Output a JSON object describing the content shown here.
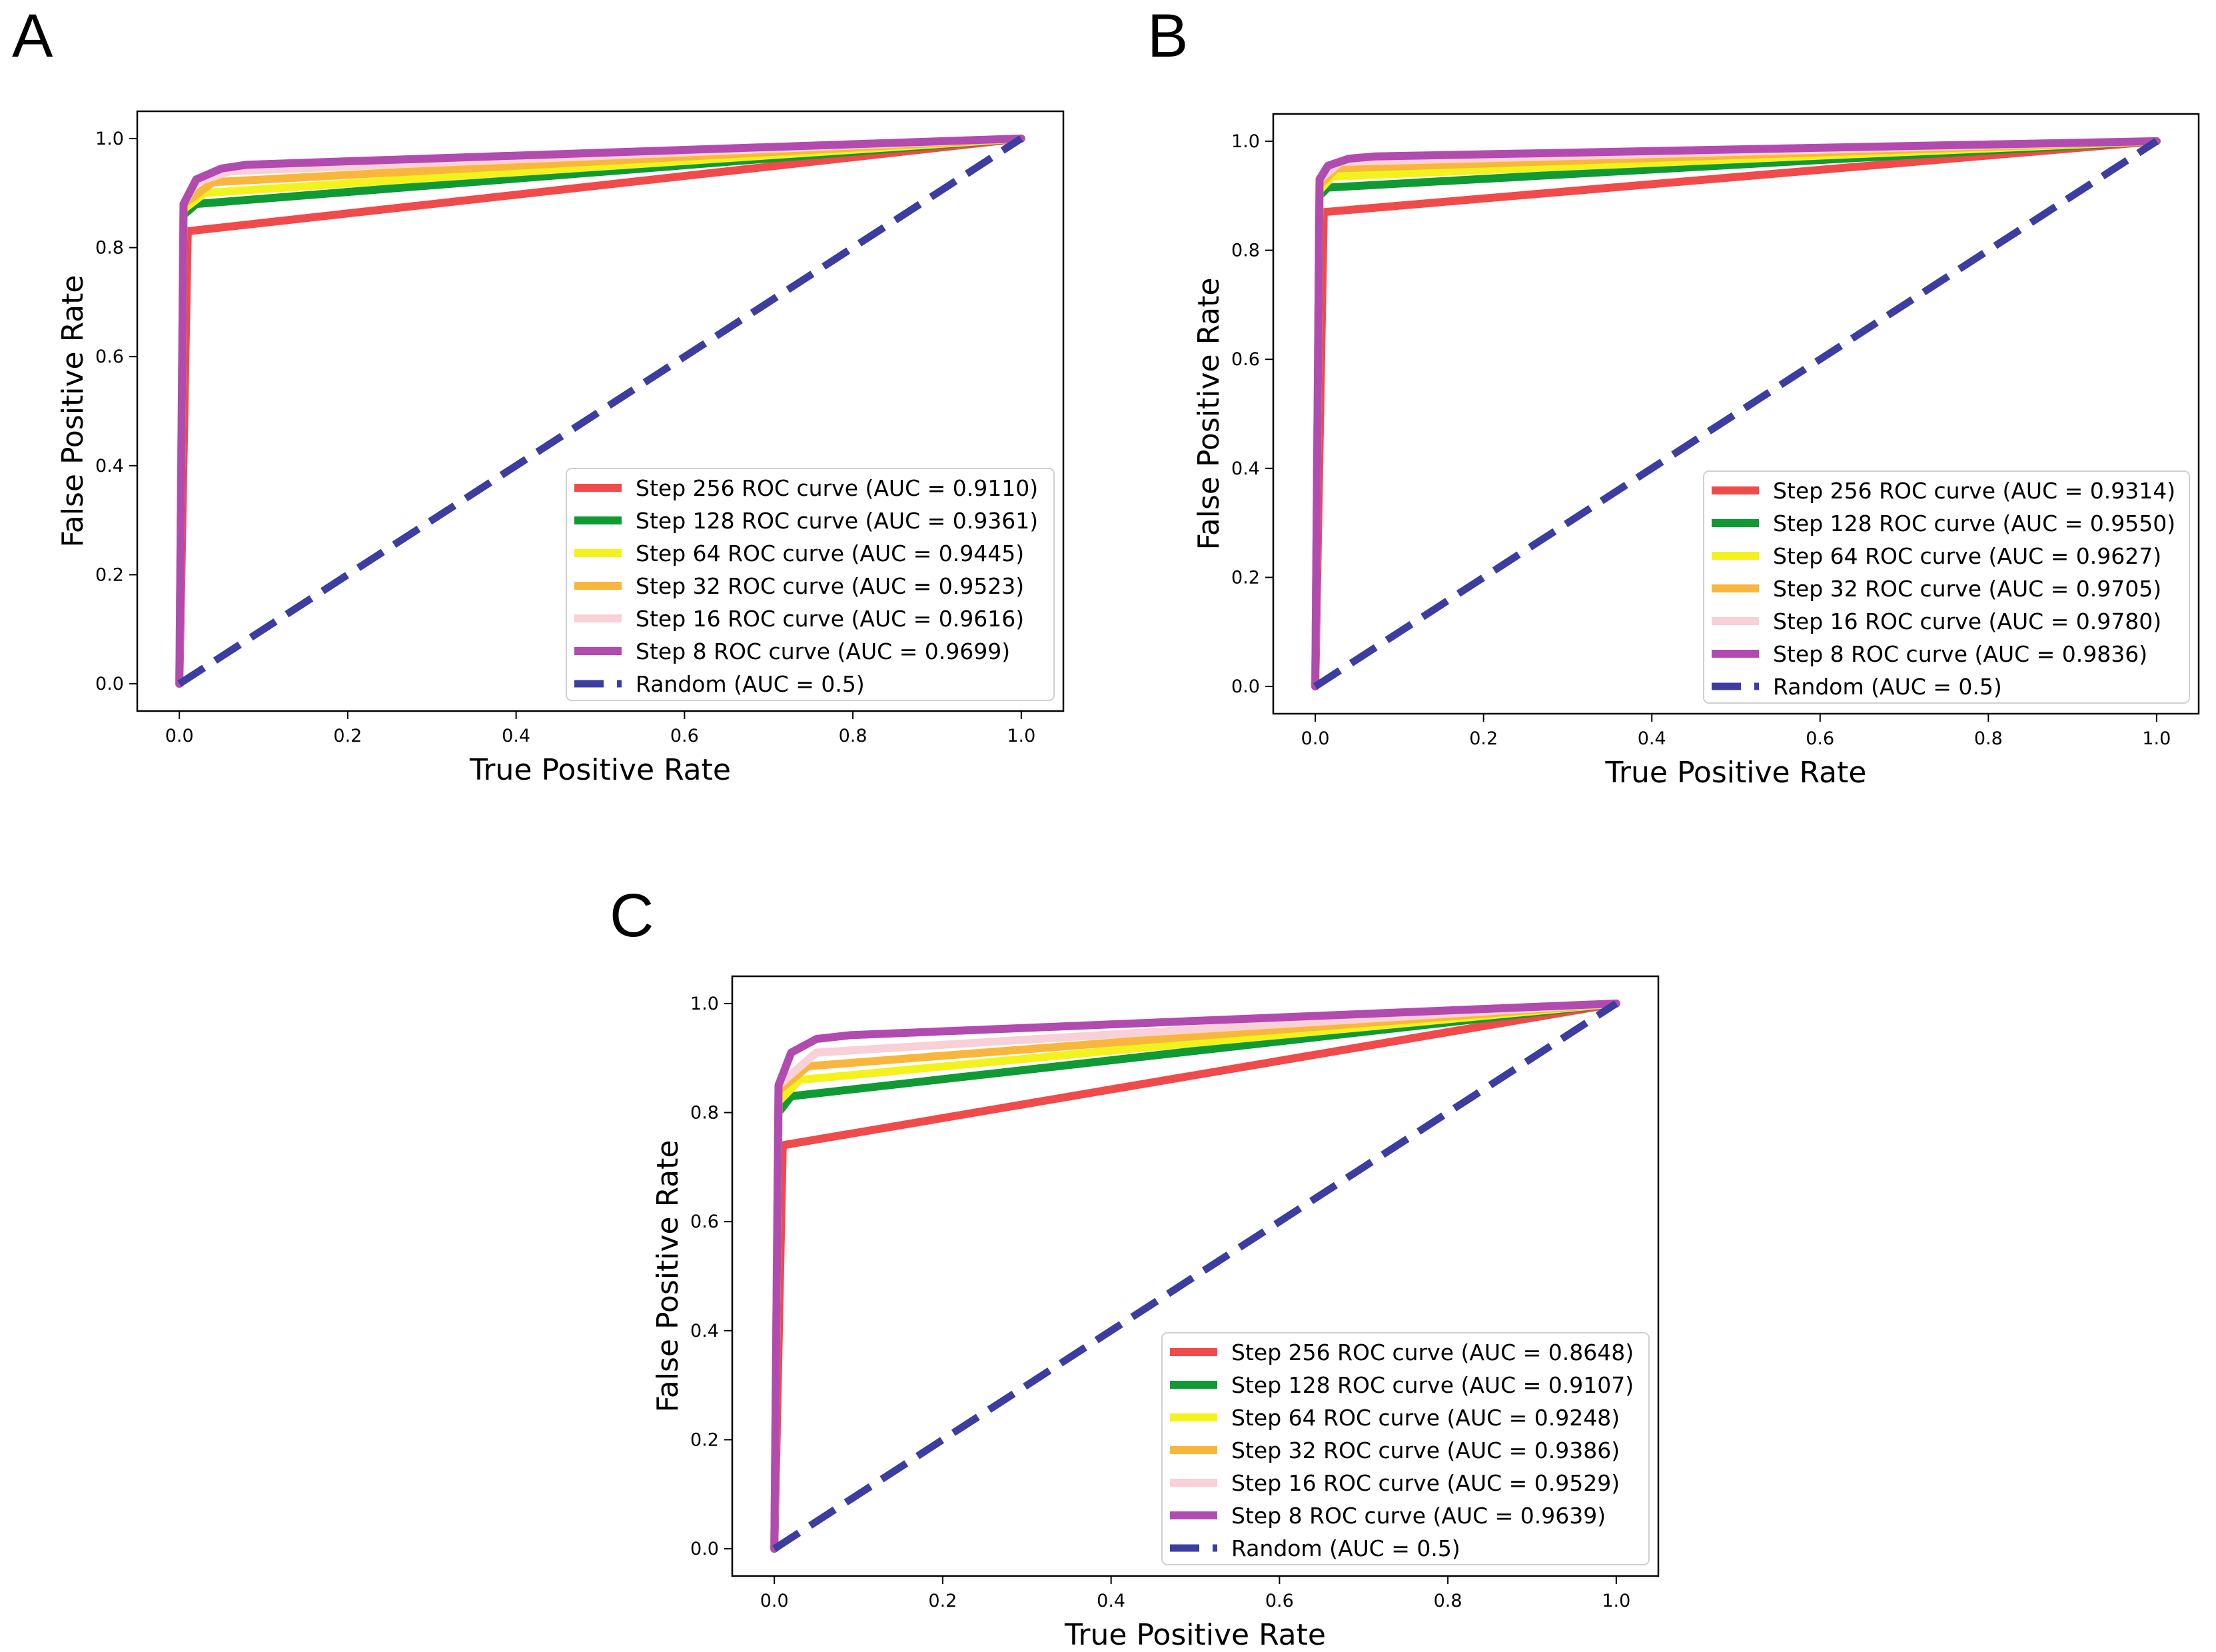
{
  "figure": {
    "panel_labels": [
      "A",
      "B",
      "C"
    ]
  },
  "colors": {
    "Step 256": "#f04a4a",
    "Step 128": "#0f9a33",
    "Step 64": "#f4f21c",
    "Step 32": "#f8b73c",
    "Step 16": "#f9cfd8",
    "Step 8": "#b24bb0",
    "Random": "#3b3da0"
  },
  "chart_data": [
    {
      "panel": "A",
      "type": "line",
      "xlabel": "True Positive Rate",
      "ylabel": "False Positive Rate",
      "xlim": [
        -0.05,
        1.05
      ],
      "ylim": [
        -0.05,
        1.05
      ],
      "xticks": [
        "0.0",
        "0.2",
        "0.4",
        "0.6",
        "0.8",
        "1.0"
      ],
      "yticks": [
        "0.0",
        "0.2",
        "0.4",
        "0.6",
        "0.8",
        "1.0"
      ],
      "legend_position": "lower-right",
      "series": [
        {
          "name": "Step 256",
          "label": "Step 256 ROC curve (AUC = 0.9110)",
          "x": [
            0,
            0.01,
            1.0
          ],
          "y": [
            0,
            0.83,
            1.0
          ]
        },
        {
          "name": "Step 128",
          "label": "Step 128 ROC curve (AUC = 0.9361)",
          "x": [
            0,
            0.005,
            0.02,
            1.0
          ],
          "y": [
            0,
            0.86,
            0.88,
            1.0
          ]
        },
        {
          "name": "Step 64",
          "label": "Step 64 ROC curve (AUC = 0.9445)",
          "x": [
            0,
            0.005,
            0.03,
            1.0
          ],
          "y": [
            0,
            0.87,
            0.9,
            1.0
          ]
        },
        {
          "name": "Step 32",
          "label": "Step 32 ROC curve (AUC = 0.9523)",
          "x": [
            0,
            0.005,
            0.04,
            1.0
          ],
          "y": [
            0,
            0.88,
            0.92,
            1.0
          ]
        },
        {
          "name": "Step 16",
          "label": "Step 16 ROC curve (AUC = 0.9616)",
          "x": [
            0,
            0.005,
            0.02,
            0.06,
            1.0
          ],
          "y": [
            0,
            0.88,
            0.92,
            0.94,
            1.0
          ]
        },
        {
          "name": "Step 8",
          "label": "Step 8 ROC curve (AUC = 0.9699)",
          "x": [
            0,
            0.005,
            0.02,
            0.05,
            0.08,
            1.0
          ],
          "y": [
            0,
            0.88,
            0.925,
            0.945,
            0.952,
            1.0
          ]
        },
        {
          "name": "Random",
          "label": "Random (AUC = 0.5)",
          "x": [
            0,
            1
          ],
          "y": [
            0,
            1
          ],
          "dashed": true
        }
      ]
    },
    {
      "panel": "B",
      "type": "line",
      "xlabel": "True Positive Rate",
      "ylabel": "False Positive Rate",
      "xlim": [
        -0.05,
        1.05
      ],
      "ylim": [
        -0.05,
        1.05
      ],
      "xticks": [
        "0.0",
        "0.2",
        "0.4",
        "0.6",
        "0.8",
        "1.0"
      ],
      "yticks": [
        "0.0",
        "0.2",
        "0.4",
        "0.6",
        "0.8",
        "1.0"
      ],
      "legend_position": "lower-right",
      "series": [
        {
          "name": "Step 256",
          "label": "Step 256 ROC curve (AUC = 0.9314)",
          "x": [
            0,
            0.01,
            1.0
          ],
          "y": [
            0,
            0.87,
            1.0
          ]
        },
        {
          "name": "Step 128",
          "label": "Step 128 ROC curve (AUC = 0.9550)",
          "x": [
            0,
            0.005,
            0.015,
            1.0
          ],
          "y": [
            0,
            0.9,
            0.915,
            1.0
          ]
        },
        {
          "name": "Step 64",
          "label": "Step 64 ROC curve (AUC = 0.9627)",
          "x": [
            0,
            0.005,
            0.02,
            1.0
          ],
          "y": [
            0,
            0.91,
            0.935,
            1.0
          ]
        },
        {
          "name": "Step 32",
          "label": "Step 32 ROC curve (AUC = 0.9705)",
          "x": [
            0,
            0.005,
            0.025,
            1.0
          ],
          "y": [
            0,
            0.92,
            0.95,
            1.0
          ]
        },
        {
          "name": "Step 16",
          "label": "Step 16 ROC curve (AUC = 0.9780)",
          "x": [
            0,
            0.005,
            0.03,
            1.0
          ],
          "y": [
            0,
            0.93,
            0.962,
            1.0
          ]
        },
        {
          "name": "Step 8",
          "label": "Step 8 ROC curve (AUC = 0.9836)",
          "x": [
            0,
            0.005,
            0.015,
            0.04,
            0.07,
            1.0
          ],
          "y": [
            0,
            0.93,
            0.955,
            0.968,
            0.972,
            1.0
          ]
        },
        {
          "name": "Random",
          "label": "Random (AUC = 0.5)",
          "x": [
            0,
            1
          ],
          "y": [
            0,
            1
          ],
          "dashed": true
        }
      ]
    },
    {
      "panel": "C",
      "type": "line",
      "xlabel": "True Positive Rate",
      "ylabel": "False Positive Rate",
      "xlim": [
        -0.05,
        1.05
      ],
      "ylim": [
        -0.05,
        1.05
      ],
      "xticks": [
        "0.0",
        "0.2",
        "0.4",
        "0.6",
        "0.8",
        "1.0"
      ],
      "yticks": [
        "0.0",
        "0.2",
        "0.4",
        "0.6",
        "0.8",
        "1.0"
      ],
      "legend_position": "lower-right",
      "series": [
        {
          "name": "Step 256",
          "label": "Step 256 ROC curve (AUC = 0.8648)",
          "x": [
            0,
            0.01,
            1.0
          ],
          "y": [
            0,
            0.74,
            1.0
          ]
        },
        {
          "name": "Step 128",
          "label": "Step 128 ROC curve (AUC = 0.9107)",
          "x": [
            0,
            0.005,
            0.02,
            1.0
          ],
          "y": [
            0,
            0.8,
            0.83,
            1.0
          ]
        },
        {
          "name": "Step 64",
          "label": "Step 64 ROC curve (AUC = 0.9248)",
          "x": [
            0,
            0.005,
            0.03,
            1.0
          ],
          "y": [
            0,
            0.82,
            0.86,
            1.0
          ]
        },
        {
          "name": "Step 32",
          "label": "Step 32 ROC curve (AUC = 0.9386)",
          "x": [
            0,
            0.005,
            0.04,
            1.0
          ],
          "y": [
            0,
            0.84,
            0.885,
            1.0
          ]
        },
        {
          "name": "Step 16",
          "label": "Step 16 ROC curve (AUC = 0.9529)",
          "x": [
            0,
            0.005,
            0.05,
            1.0
          ],
          "y": [
            0,
            0.85,
            0.91,
            1.0
          ]
        },
        {
          "name": "Step 8",
          "label": "Step 8 ROC curve (AUC = 0.9639)",
          "x": [
            0,
            0.005,
            0.02,
            0.05,
            0.09,
            1.0
          ],
          "y": [
            0,
            0.85,
            0.91,
            0.935,
            0.942,
            1.0
          ]
        },
        {
          "name": "Random",
          "label": "Random (AUC = 0.5)",
          "x": [
            0,
            1
          ],
          "y": [
            0,
            1
          ],
          "dashed": true
        }
      ]
    }
  ]
}
